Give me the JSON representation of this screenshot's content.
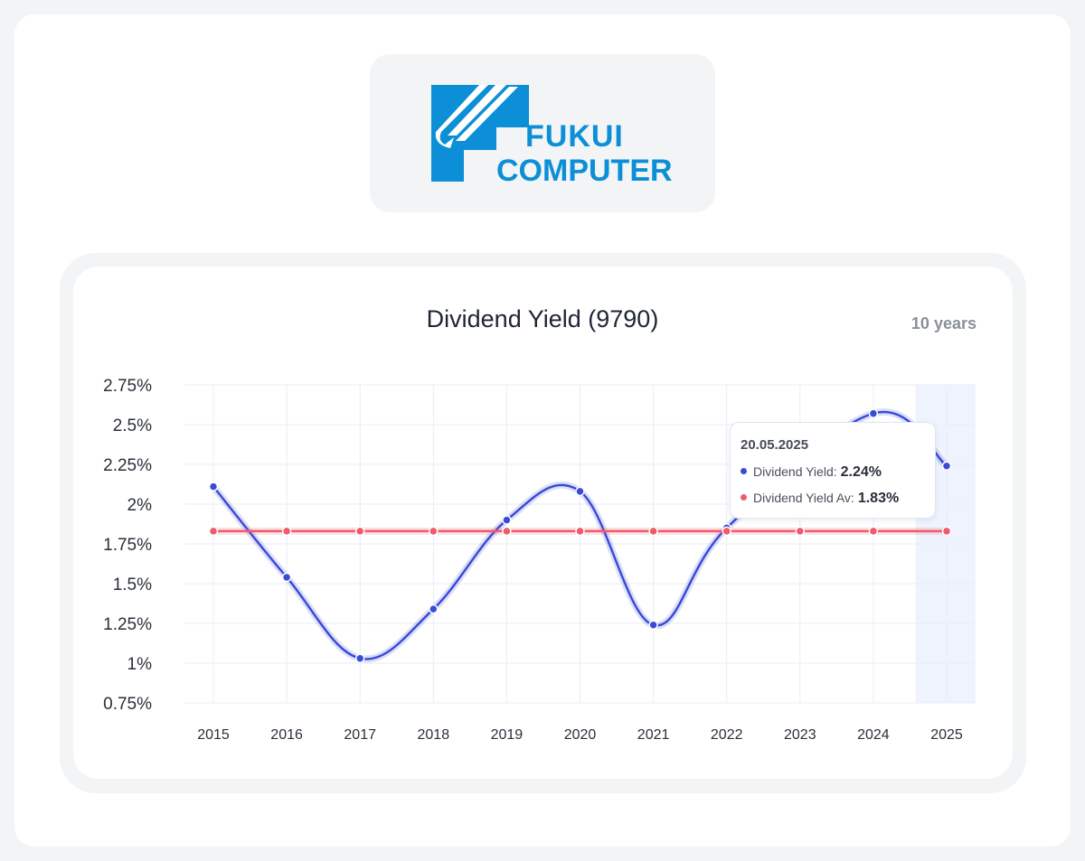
{
  "logo": {
    "line1": "FUKUI",
    "line2": "COMPUTER",
    "color": "#0c8fd6"
  },
  "chart_data": {
    "type": "line",
    "title": "Dividend Yield (9790)",
    "range_label": "10 years",
    "categories": [
      "2015",
      "2016",
      "2017",
      "2018",
      "2019",
      "2020",
      "2021",
      "2022",
      "2023",
      "2024",
      "2025"
    ],
    "ylim": [
      0.75,
      2.75
    ],
    "yticks": [
      0.75,
      1,
      1.25,
      1.5,
      1.75,
      2,
      2.25,
      2.5,
      2.75
    ],
    "ytick_labels": [
      "0.75%",
      "1%",
      "1.25%",
      "1.5%",
      "1.75%",
      "2%",
      "2.25%",
      "2.5%",
      "2.75%"
    ],
    "grid": true,
    "highlighted_category": "2025",
    "series": [
      {
        "name": "Dividend Yield",
        "color": "#3b4bd8",
        "values": [
          2.11,
          1.54,
          1.03,
          1.34,
          1.9,
          2.08,
          1.24,
          1.85,
          null,
          2.57,
          2.24
        ],
        "smooth": true
      },
      {
        "name": "Dividend Yield Av",
        "color": "#ef5b6b",
        "values": [
          1.83,
          1.83,
          1.83,
          1.83,
          1.83,
          1.83,
          1.83,
          1.83,
          1.83,
          1.83,
          1.83
        ],
        "smooth": false
      }
    ],
    "tooltip": {
      "date": "20.05.2025",
      "rows": [
        {
          "label": "Dividend Yield:",
          "value": "2.24%",
          "color": "#3b4bd8"
        },
        {
          "label": "Dividend Yield Av:",
          "value": "1.83%",
          "color": "#ef5b6b"
        }
      ]
    }
  }
}
